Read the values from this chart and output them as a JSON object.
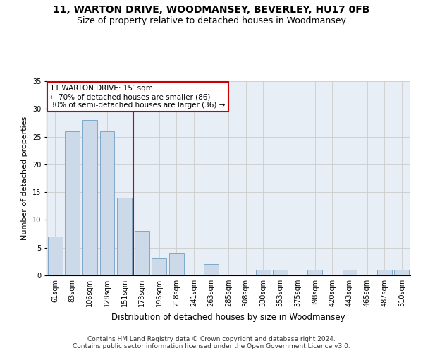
{
  "title": "11, WARTON DRIVE, WOODMANSEY, BEVERLEY, HU17 0FB",
  "subtitle": "Size of property relative to detached houses in Woodmansey",
  "xlabel": "Distribution of detached houses by size in Woodmansey",
  "ylabel": "Number of detached properties",
  "categories": [
    "61sqm",
    "83sqm",
    "106sqm",
    "128sqm",
    "151sqm",
    "173sqm",
    "196sqm",
    "218sqm",
    "241sqm",
    "263sqm",
    "285sqm",
    "308sqm",
    "330sqm",
    "353sqm",
    "375sqm",
    "398sqm",
    "420sqm",
    "443sqm",
    "465sqm",
    "487sqm",
    "510sqm"
  ],
  "values": [
    7,
    26,
    28,
    26,
    14,
    8,
    3,
    4,
    0,
    2,
    0,
    0,
    1,
    1,
    0,
    1,
    0,
    1,
    0,
    1,
    1
  ],
  "bar_color": "#ccd9e8",
  "bar_edge_color": "#7fa8c8",
  "vline_color": "#cc0000",
  "vline_index": 4,
  "annotation_text": "11 WARTON DRIVE: 151sqm\n← 70% of detached houses are smaller (86)\n30% of semi-detached houses are larger (36) →",
  "annotation_box_color": "#cc0000",
  "ylim": [
    0,
    35
  ],
  "yticks": [
    0,
    5,
    10,
    15,
    20,
    25,
    30,
    35
  ],
  "grid_color": "#cccccc",
  "background_color": "#e8eef5",
  "footer": "Contains HM Land Registry data © Crown copyright and database right 2024.\nContains public sector information licensed under the Open Government Licence v3.0.",
  "title_fontsize": 10,
  "subtitle_fontsize": 9,
  "xlabel_fontsize": 8.5,
  "ylabel_fontsize": 8,
  "annotation_fontsize": 7.5,
  "footer_fontsize": 6.5,
  "tick_fontsize": 7
}
